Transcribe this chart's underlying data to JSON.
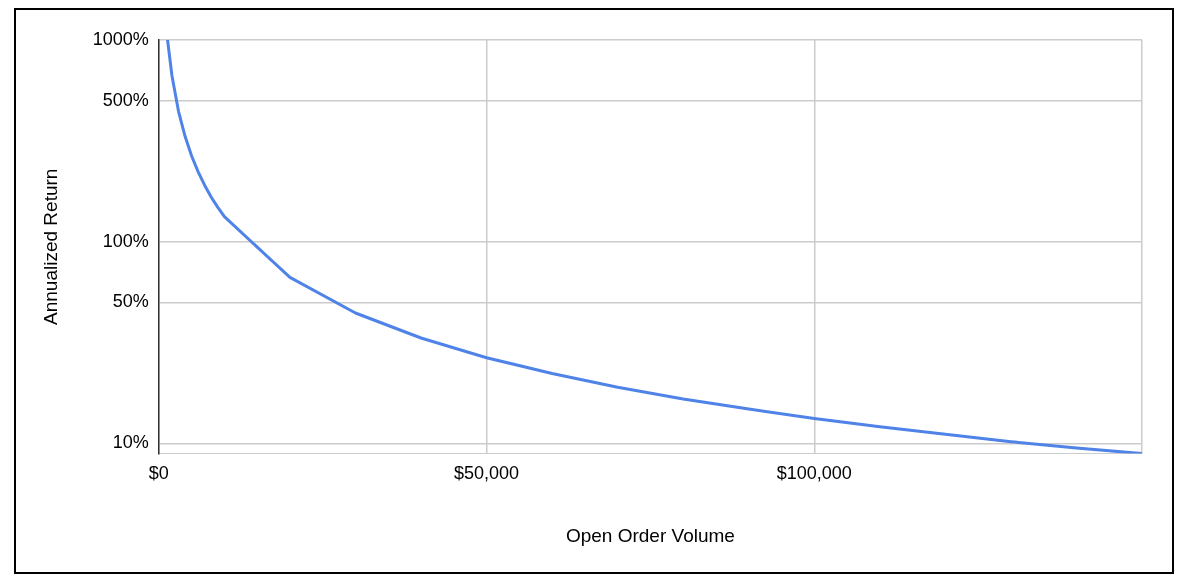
{
  "chart_data": {
    "type": "line",
    "xlabel": "Open Order Volume",
    "ylabel": "Annualized Return",
    "log": "y",
    "grid": true,
    "marker": "none",
    "x": [
      1330,
      2000,
      3000,
      4000,
      5000,
      6000,
      7000,
      8000,
      9000,
      10000,
      20000,
      30000,
      40000,
      50000,
      60000,
      70000,
      80000,
      90000,
      100000,
      110000,
      120000,
      130000,
      140000,
      150000
    ],
    "series": [
      {
        "color": "#4f83e8",
        "values": [
          1000,
          665,
          443,
          333,
          266,
          222,
          190,
          166,
          148,
          133,
          66.5,
          44.3,
          33.3,
          26.6,
          22.2,
          19,
          16.6,
          14.8,
          13.3,
          12.1,
          11.1,
          10.2,
          9.5,
          8.9
        ]
      }
    ],
    "xlim": [
      0,
      150000
    ],
    "xticks": [
      {
        "value": 0,
        "label": "$0"
      },
      {
        "value": 50000,
        "label": "$50,000"
      },
      {
        "value": 100000,
        "label": "$100,000"
      },
      {
        "value": 150000,
        "label": null
      }
    ],
    "ylim": [
      8.9,
      1000
    ],
    "yticks": [
      {
        "value": 10,
        "label": "10%"
      },
      {
        "value": 50,
        "label": "50%"
      },
      {
        "value": 100,
        "label": "100%"
      },
      {
        "value": 500,
        "label": "500%"
      },
      {
        "value": 1000,
        "label": "1000%"
      }
    ]
  }
}
